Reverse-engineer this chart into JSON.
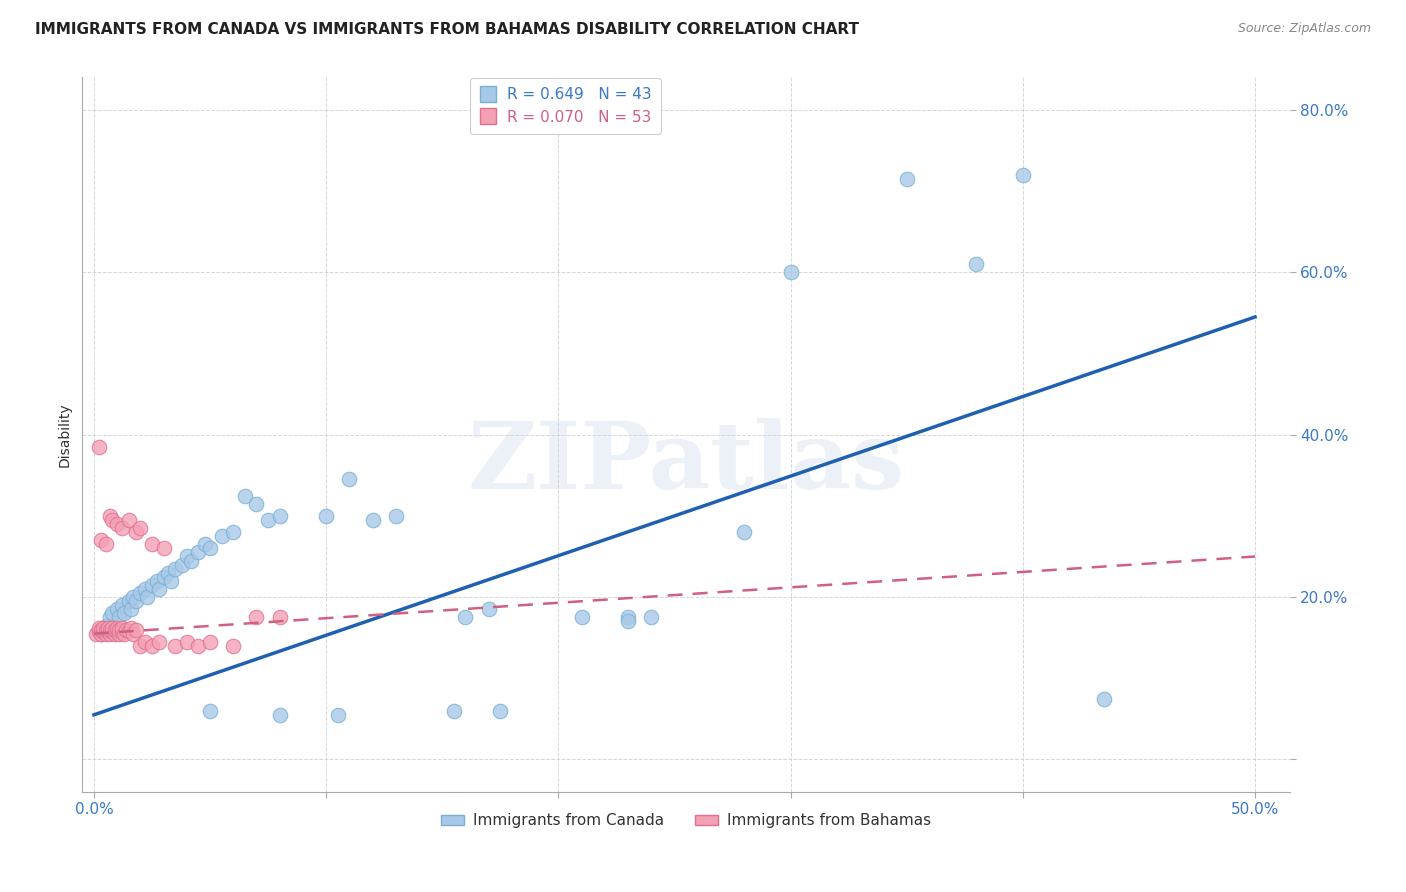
{
  "title": "IMMIGRANTS FROM CANADA VS IMMIGRANTS FROM BAHAMAS DISABILITY CORRELATION CHART",
  "source": "Source: ZipAtlas.com",
  "ylabel": "Disability",
  "yticks": [
    0.0,
    0.2,
    0.4,
    0.6,
    0.8
  ],
  "ytick_labels": [
    "",
    "20.0%",
    "40.0%",
    "60.0%",
    "80.0%"
  ],
  "xticks": [
    0.0,
    0.1,
    0.2,
    0.3,
    0.4,
    0.5
  ],
  "xtick_labels": [
    "0.0%",
    "",
    "",
    "",
    "",
    "50.0%"
  ],
  "xlim": [
    -0.005,
    0.515
  ],
  "ylim": [
    -0.04,
    0.84
  ],
  "canada_color": "#a8c8e8",
  "canada_edge_color": "#7aafd4",
  "bahamas_color": "#f4a0b4",
  "bahamas_edge_color": "#e07090",
  "canada_line_color": "#2060b0",
  "bahamas_line_color": "#d06080",
  "canada_points": [
    [
      0.003,
      0.155
    ],
    [
      0.005,
      0.165
    ],
    [
      0.007,
      0.175
    ],
    [
      0.008,
      0.18
    ],
    [
      0.01,
      0.185
    ],
    [
      0.011,
      0.175
    ],
    [
      0.012,
      0.19
    ],
    [
      0.013,
      0.18
    ],
    [
      0.015,
      0.195
    ],
    [
      0.016,
      0.185
    ],
    [
      0.017,
      0.2
    ],
    [
      0.018,
      0.195
    ],
    [
      0.02,
      0.205
    ],
    [
      0.022,
      0.21
    ],
    [
      0.023,
      0.2
    ],
    [
      0.025,
      0.215
    ],
    [
      0.027,
      0.22
    ],
    [
      0.028,
      0.21
    ],
    [
      0.03,
      0.225
    ],
    [
      0.032,
      0.23
    ],
    [
      0.033,
      0.22
    ],
    [
      0.035,
      0.235
    ],
    [
      0.038,
      0.24
    ],
    [
      0.04,
      0.25
    ],
    [
      0.042,
      0.245
    ],
    [
      0.045,
      0.255
    ],
    [
      0.048,
      0.265
    ],
    [
      0.05,
      0.26
    ],
    [
      0.055,
      0.275
    ],
    [
      0.06,
      0.28
    ],
    [
      0.065,
      0.325
    ],
    [
      0.07,
      0.315
    ],
    [
      0.075,
      0.295
    ],
    [
      0.08,
      0.3
    ],
    [
      0.1,
      0.3
    ],
    [
      0.11,
      0.345
    ],
    [
      0.12,
      0.295
    ],
    [
      0.13,
      0.3
    ],
    [
      0.16,
      0.175
    ],
    [
      0.17,
      0.185
    ],
    [
      0.21,
      0.175
    ],
    [
      0.23,
      0.175
    ],
    [
      0.28,
      0.28
    ],
    [
      0.05,
      0.06
    ],
    [
      0.08,
      0.055
    ],
    [
      0.105,
      0.055
    ],
    [
      0.155,
      0.06
    ],
    [
      0.175,
      0.06
    ],
    [
      0.23,
      0.17
    ],
    [
      0.24,
      0.175
    ],
    [
      0.3,
      0.6
    ],
    [
      0.35,
      0.715
    ],
    [
      0.38,
      0.61
    ],
    [
      0.4,
      0.72
    ],
    [
      0.435,
      0.075
    ]
  ],
  "bahamas_points": [
    [
      0.001,
      0.155
    ],
    [
      0.002,
      0.158
    ],
    [
      0.002,
      0.162
    ],
    [
      0.003,
      0.155
    ],
    [
      0.003,
      0.16
    ],
    [
      0.004,
      0.158
    ],
    [
      0.004,
      0.162
    ],
    [
      0.005,
      0.155
    ],
    [
      0.005,
      0.16
    ],
    [
      0.006,
      0.158
    ],
    [
      0.006,
      0.162
    ],
    [
      0.007,
      0.155
    ],
    [
      0.007,
      0.16
    ],
    [
      0.008,
      0.158
    ],
    [
      0.008,
      0.162
    ],
    [
      0.009,
      0.155
    ],
    [
      0.009,
      0.16
    ],
    [
      0.01,
      0.158
    ],
    [
      0.01,
      0.162
    ],
    [
      0.011,
      0.155
    ],
    [
      0.011,
      0.16
    ],
    [
      0.012,
      0.158
    ],
    [
      0.012,
      0.162
    ],
    [
      0.013,
      0.155
    ],
    [
      0.014,
      0.16
    ],
    [
      0.015,
      0.158
    ],
    [
      0.016,
      0.162
    ],
    [
      0.017,
      0.155
    ],
    [
      0.018,
      0.16
    ],
    [
      0.02,
      0.14
    ],
    [
      0.022,
      0.145
    ],
    [
      0.025,
      0.14
    ],
    [
      0.028,
      0.145
    ],
    [
      0.035,
      0.14
    ],
    [
      0.04,
      0.145
    ],
    [
      0.045,
      0.14
    ],
    [
      0.05,
      0.145
    ],
    [
      0.06,
      0.14
    ],
    [
      0.002,
      0.385
    ],
    [
      0.007,
      0.3
    ],
    [
      0.008,
      0.295
    ],
    [
      0.01,
      0.29
    ],
    [
      0.012,
      0.285
    ],
    [
      0.015,
      0.295
    ],
    [
      0.018,
      0.28
    ],
    [
      0.02,
      0.285
    ],
    [
      0.003,
      0.27
    ],
    [
      0.005,
      0.265
    ],
    [
      0.025,
      0.265
    ],
    [
      0.03,
      0.26
    ],
    [
      0.07,
      0.175
    ],
    [
      0.08,
      0.175
    ]
  ],
  "canada_trend_x": [
    0.0,
    0.5
  ],
  "canada_trend_y": [
    0.055,
    0.545
  ],
  "bahamas_trend_x": [
    0.0,
    0.5
  ],
  "bahamas_trend_y": [
    0.155,
    0.25
  ],
  "watermark_text": "ZIPatlas",
  "background_color": "#ffffff"
}
